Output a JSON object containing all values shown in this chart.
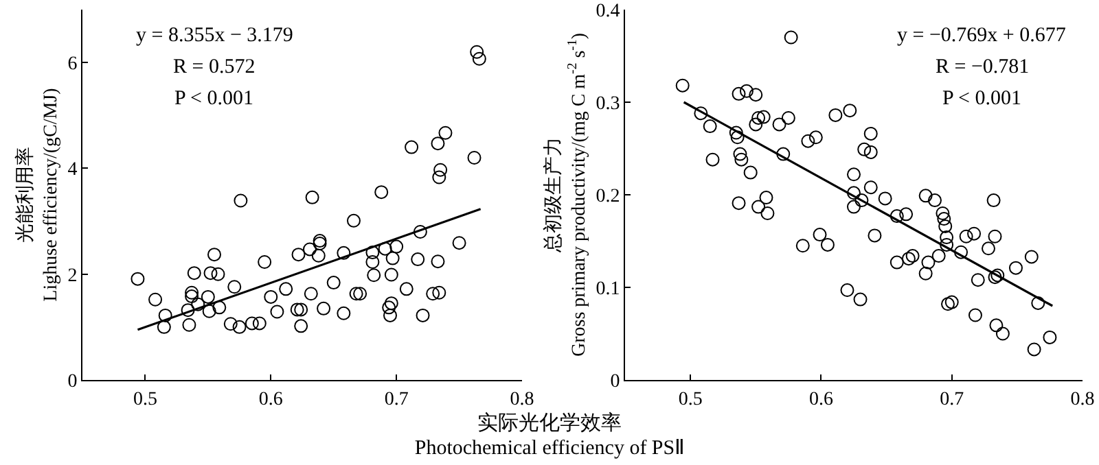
{
  "chart_data": [
    {
      "type": "scatter",
      "xlabel": "实际光化学效率\nPhotochemical efficiency of PSⅡ",
      "ylabel": "光能利用率\nLighuse efficiency/(gC/MJ)",
      "xlim": [
        0.45,
        0.8
      ],
      "xticks": [
        0.5,
        0.6,
        0.7,
        0.8
      ],
      "ylim": [
        0,
        7
      ],
      "yticks": [
        0,
        2,
        4,
        6
      ],
      "annotations": [
        "y = 8.355x − 3.179",
        "R = 0.572",
        "P < 0.001"
      ],
      "series": [
        {
          "color": "#000000",
          "marker": "circle",
          "x": [
            0.494,
            0.508,
            0.516,
            0.515,
            0.534,
            0.535,
            0.537,
            0.537,
            0.539,
            0.542,
            0.55,
            0.551,
            0.552,
            0.555,
            0.558,
            0.559,
            0.568,
            0.571,
            0.575,
            0.576,
            0.585,
            0.591,
            0.595,
            0.6,
            0.605,
            0.612,
            0.621,
            0.622,
            0.624,
            0.624,
            0.631,
            0.632,
            0.633,
            0.638,
            0.639,
            0.639,
            0.642,
            0.65,
            0.658,
            0.658,
            0.666,
            0.668,
            0.671,
            0.681,
            0.681,
            0.682,
            0.688,
            0.691,
            0.694,
            0.695,
            0.696,
            0.696,
            0.697,
            0.7,
            0.708,
            0.712,
            0.717,
            0.719,
            0.721,
            0.729,
            0.733,
            0.733,
            0.734,
            0.734,
            0.735,
            0.739,
            0.75,
            0.762,
            0.764,
            0.766
          ],
          "values": [
            1.91,
            1.52,
            1.22,
            1.0,
            1.32,
            1.04,
            1.65,
            1.58,
            2.02,
            1.43,
            1.57,
            1.3,
            2.02,
            2.37,
            2.0,
            1.37,
            1.06,
            1.76,
            1.0,
            3.39,
            1.07,
            1.07,
            2.23,
            1.57,
            1.29,
            1.72,
            1.33,
            2.37,
            1.33,
            1.02,
            2.47,
            1.63,
            3.45,
            2.35,
            2.63,
            2.58,
            1.35,
            1.84,
            1.26,
            2.4,
            3.01,
            1.63,
            1.63,
            2.23,
            2.41,
            1.98,
            3.55,
            2.48,
            1.37,
            1.22,
            1.99,
            1.45,
            2.3,
            2.52,
            1.72,
            4.4,
            2.28,
            2.8,
            1.22,
            1.63,
            2.24,
            4.47,
            1.65,
            3.83,
            3.97,
            4.67,
            2.59,
            4.2,
            6.2,
            6.07
          ]
        },
        {
          "type": "line",
          "color": "#000000",
          "marker": "none",
          "x": [
            0.494,
            0.767
          ],
          "values": [
            0.95,
            3.23
          ]
        }
      ]
    },
    {
      "type": "scatter",
      "ylabel": "总初级生产力\nGross primary productivity/(mg C m$^{-2}$ s$^{-1}$)",
      "xlim": [
        0.45,
        0.8
      ],
      "xticks": [
        0.5,
        0.6,
        0.7,
        0.8
      ],
      "ylim": [
        0,
        0.4
      ],
      "yticks": [
        0,
        0.1,
        0.2,
        0.3,
        0.4
      ],
      "annotations": [
        "y = −0.769x + 0.677",
        "R = −0.781",
        "P < 0.001"
      ],
      "series": [
        {
          "color": "#000000",
          "marker": "circle",
          "x": [
            0.494,
            0.508,
            0.515,
            0.517,
            0.535,
            0.536,
            0.537,
            0.543,
            0.55,
            0.538,
            0.539,
            0.546,
            0.537,
            0.552,
            0.558,
            0.559,
            0.55,
            0.552,
            0.556,
            0.568,
            0.575,
            0.571,
            0.577,
            0.586,
            0.59,
            0.596,
            0.599,
            0.605,
            0.611,
            0.622,
            0.62,
            0.63,
            0.625,
            0.625,
            0.625,
            0.631,
            0.633,
            0.638,
            0.638,
            0.638,
            0.641,
            0.649,
            0.658,
            0.658,
            0.665,
            0.667,
            0.67,
            0.68,
            0.687,
            0.68,
            0.682,
            0.69,
            0.693,
            0.694,
            0.695,
            0.696,
            0.696,
            0.697,
            0.7,
            0.707,
            0.711,
            0.717,
            0.718,
            0.72,
            0.728,
            0.732,
            0.733,
            0.733,
            0.735,
            0.734,
            0.739,
            0.749,
            0.761,
            0.766,
            0.763,
            0.775
          ],
          "values": [
            0.318,
            0.288,
            0.274,
            0.238,
            0.267,
            0.262,
            0.309,
            0.312,
            0.308,
            0.244,
            0.238,
            0.224,
            0.191,
            0.187,
            0.197,
            0.18,
            0.276,
            0.283,
            0.284,
            0.276,
            0.283,
            0.244,
            0.37,
            0.145,
            0.258,
            0.262,
            0.157,
            0.146,
            0.286,
            0.291,
            0.097,
            0.087,
            0.222,
            0.202,
            0.187,
            0.194,
            0.249,
            0.266,
            0.246,
            0.208,
            0.156,
            0.196,
            0.177,
            0.127,
            0.179,
            0.131,
            0.134,
            0.199,
            0.194,
            0.115,
            0.127,
            0.134,
            0.18,
            0.174,
            0.166,
            0.154,
            0.146,
            0.082,
            0.084,
            0.138,
            0.155,
            0.158,
            0.07,
            0.108,
            0.142,
            0.194,
            0.155,
            0.111,
            0.113,
            0.059,
            0.05,
            0.121,
            0.133,
            0.083,
            0.033,
            0.046
          ]
        },
        {
          "type": "line",
          "color": "#000000",
          "marker": "none",
          "x": [
            0.495,
            0.777
          ],
          "values": [
            0.3,
            0.08
          ]
        }
      ]
    }
  ]
}
